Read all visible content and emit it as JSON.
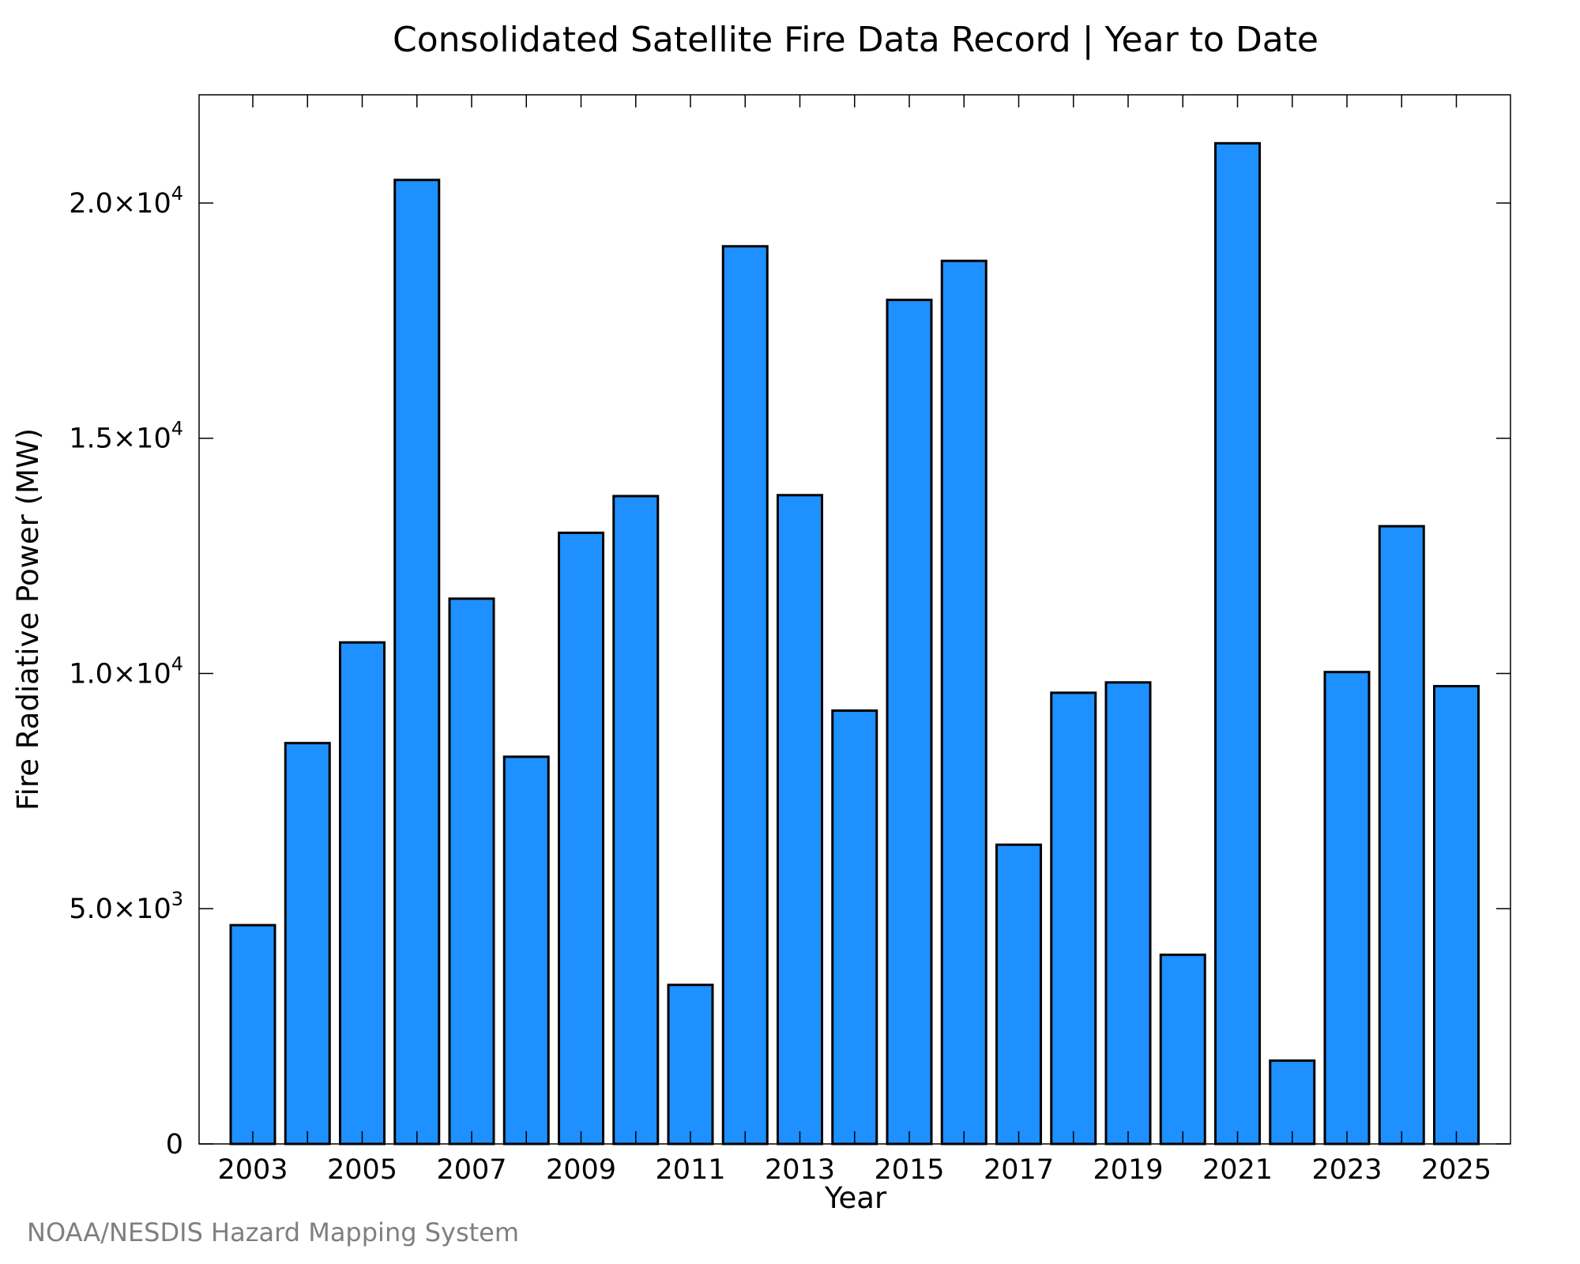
{
  "chart_data": {
    "type": "bar",
    "title": "Consolidated Satellite Fire Data Record | Year to Date",
    "xlabel": "Year",
    "ylabel": "Fire Radiative Power (MW)",
    "categories": [
      "2003",
      "2004",
      "2005",
      "2006",
      "2007",
      "2008",
      "2009",
      "2010",
      "2011",
      "2012",
      "2013",
      "2014",
      "2015",
      "2016",
      "2017",
      "2018",
      "2019",
      "2020",
      "2021",
      "2022",
      "2023",
      "2024",
      "2025"
    ],
    "values": [
      4650,
      8520,
      10660,
      20490,
      11590,
      8230,
      12990,
      13770,
      3380,
      19080,
      13790,
      9210,
      17940,
      18770,
      6360,
      9590,
      9810,
      4020,
      21270,
      1770,
      10030,
      13130,
      9730
    ],
    "x_tick_labels": [
      "2003",
      "2005",
      "2007",
      "2009",
      "2011",
      "2013",
      "2015",
      "2017",
      "2019",
      "2021",
      "2023",
      "2025"
    ],
    "y_ticks": [
      {
        "value": 0,
        "mantissa": "0",
        "exponent": ""
      },
      {
        "value": 5000,
        "mantissa": "5.0×10",
        "exponent": "3"
      },
      {
        "value": 10000,
        "mantissa": "1.0×10",
        "exponent": "4"
      },
      {
        "value": 15000,
        "mantissa": "1.5×10",
        "exponent": "4"
      },
      {
        "value": 20000,
        "mantissa": "2.0×10",
        "exponent": "4"
      }
    ],
    "ylim": [
      0,
      22300
    ],
    "bar_color": "#1e90ff",
    "grid": false,
    "legend": "none",
    "credit": "NOAA/NESDIS Hazard Mapping System"
  }
}
